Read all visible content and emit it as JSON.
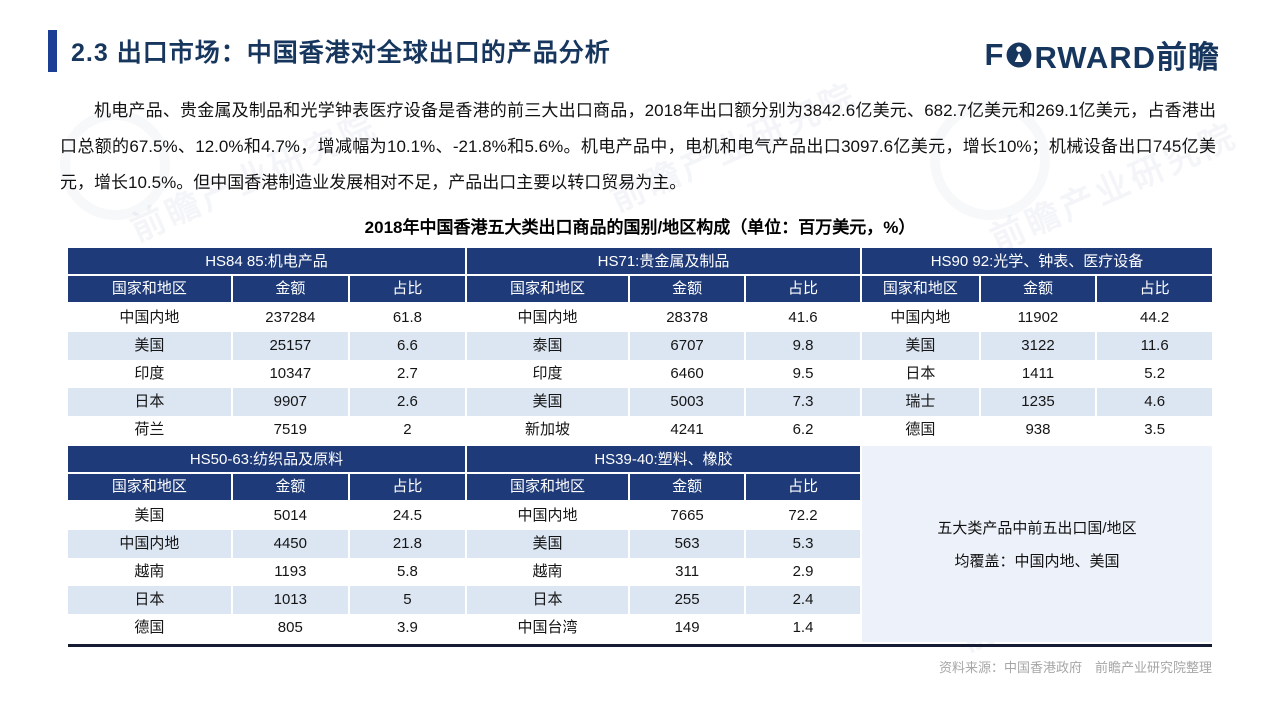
{
  "header": {
    "title": "2.3 出口市场：中国香港对全球出口的产品分析",
    "logo_prefix": "F",
    "logo_suffix": "RWARD前瞻"
  },
  "intro_text": "机电产品、贵金属及制品和光学钟表医疗设备是香港的前三大出口商品，2018年出口额分别为3842.6亿美元、682.7亿美元和269.1亿美元，占香港出口总额的67.5%、12.0%和4.7%，增减幅为10.1%、-21.8%和5.6%。机电产品中，电机和电气产品出口3097.6亿美元，增长10%；机械设备出口745亿美元，增长10.5%。但中国香港制造业发展相对不足，产品出口主要以转口贸易为主。",
  "table_title": "2018年中国香港五大类出口商品的国别/地区构成（单位：百万美元，%）",
  "columns": [
    "国家和地区",
    "金额",
    "占比"
  ],
  "tables": [
    {
      "title": "HS84 85:机电产品",
      "rows": [
        [
          "中国内地",
          "237284",
          "61.8"
        ],
        [
          "美国",
          "25157",
          "6.6"
        ],
        [
          "印度",
          "10347",
          "2.7"
        ],
        [
          "日本",
          "9907",
          "2.6"
        ],
        [
          "荷兰",
          "7519",
          "2"
        ]
      ]
    },
    {
      "title": "HS71:贵金属及制品",
      "rows": [
        [
          "中国内地",
          "28378",
          "41.6"
        ],
        [
          "泰国",
          "6707",
          "9.8"
        ],
        [
          "印度",
          "6460",
          "9.5"
        ],
        [
          "美国",
          "5003",
          "7.3"
        ],
        [
          "新加坡",
          "4241",
          "6.2"
        ]
      ]
    },
    {
      "title": "HS90 92:光学、钟表、医疗设备",
      "rows": [
        [
          "中国内地",
          "11902",
          "44.2"
        ],
        [
          "美国",
          "3122",
          "11.6"
        ],
        [
          "日本",
          "1411",
          "5.2"
        ],
        [
          "瑞士",
          "1235",
          "4.6"
        ],
        [
          "德国",
          "938",
          "3.5"
        ]
      ]
    },
    {
      "title": "HS50-63:纺织品及原料",
      "rows": [
        [
          "美国",
          "5014",
          "24.5"
        ],
        [
          "中国内地",
          "4450",
          "21.8"
        ],
        [
          "越南",
          "1193",
          "5.8"
        ],
        [
          "日本",
          "1013",
          "5"
        ],
        [
          "德国",
          "805",
          "3.9"
        ]
      ]
    },
    {
      "title": "HS39-40:塑料、橡胶",
      "rows": [
        [
          "中国内地",
          "7665",
          "72.2"
        ],
        [
          "美国",
          "563",
          "5.3"
        ],
        [
          "越南",
          "311",
          "2.9"
        ],
        [
          "日本",
          "255",
          "2.4"
        ],
        [
          "中国台湾",
          "149",
          "1.4"
        ]
      ]
    }
  ],
  "note": {
    "line1": "五大类产品中前五出口国/地区",
    "line2": "均覆盖：中国内地、美国"
  },
  "source": "资料来源：中国香港政府　前瞻产业研究院整理",
  "watermark": "前瞻产业研究院",
  "colors": {
    "header_navy": "#1e3a78",
    "row_alt_blue": "#dce6f3",
    "accent_blue": "#1c3e94",
    "title_navy": "#17365d",
    "note_bg": "#edf1f9",
    "source_grey": "#a6a6a6"
  }
}
